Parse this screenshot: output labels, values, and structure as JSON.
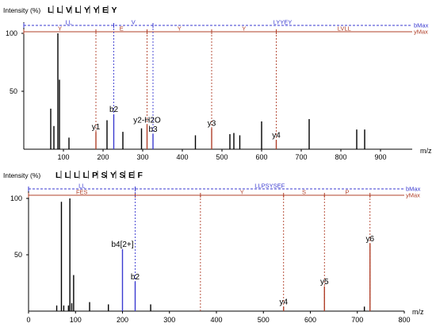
{
  "chart_data": [
    {
      "type": "bar",
      "ylabel": "Intensity (%)",
      "xlabel": "m/z",
      "sequence": [
        "L",
        "L",
        "V",
        "L",
        "Y",
        "Y",
        "E",
        "Y"
      ],
      "xlim": [
        0,
        980
      ],
      "ylim": [
        0,
        100
      ],
      "x_ticks": [
        "100",
        "200",
        "300",
        "400",
        "500",
        "600",
        "700",
        "800",
        "900"
      ],
      "y_ticks": [
        "50",
        "100"
      ],
      "b_series": {
        "name": "bMax",
        "segments": [
          {
            "from": 0,
            "to": 227,
            "label": "LL"
          },
          {
            "from": 227,
            "to": 326,
            "label": "V"
          },
          {
            "from": 326,
            "to": 980,
            "label": "LYYEY"
          }
        ]
      },
      "y_series": {
        "name": "yMax",
        "segments": [
          {
            "from": 0,
            "to": 182,
            "label": "Y"
          },
          {
            "from": 182,
            "to": 311,
            "label": "E"
          },
          {
            "from": 311,
            "to": 474,
            "label": "Y"
          },
          {
            "from": 474,
            "to": 637,
            "label": "Y"
          },
          {
            "from": 637,
            "to": 980,
            "label": "LVLL"
          }
        ]
      },
      "y_markers": [
        182,
        311,
        474,
        637
      ],
      "b_markers": [
        227,
        326
      ],
      "peaks": [
        {
          "x": 68,
          "y": 35
        },
        {
          "x": 76,
          "y": 20
        },
        {
          "x": 86,
          "y": 100
        },
        {
          "x": 90,
          "y": 60
        },
        {
          "x": 114,
          "y": 10
        },
        {
          "x": 182,
          "y": 15
        },
        {
          "x": 210,
          "y": 25
        },
        {
          "x": 227,
          "y": 30
        },
        {
          "x": 250,
          "y": 15
        },
        {
          "x": 297,
          "y": 18
        },
        {
          "x": 311,
          "y": 21
        },
        {
          "x": 326,
          "y": 13
        },
        {
          "x": 433,
          "y": 12
        },
        {
          "x": 474,
          "y": 18
        },
        {
          "x": 520,
          "y": 13
        },
        {
          "x": 530,
          "y": 14
        },
        {
          "x": 545,
          "y": 12
        },
        {
          "x": 600,
          "y": 24
        },
        {
          "x": 637,
          "y": 8
        },
        {
          "x": 720,
          "y": 26
        },
        {
          "x": 840,
          "y": 17
        },
        {
          "x": 860,
          "y": 17
        }
      ],
      "annotations": [
        {
          "x": 182,
          "y": 15,
          "text": "y1"
        },
        {
          "x": 227,
          "y": 30,
          "text": "b2"
        },
        {
          "x": 311,
          "y": 21,
          "text": "y2-H2O"
        },
        {
          "x": 326,
          "y": 13,
          "text": "b3"
        },
        {
          "x": 474,
          "y": 18,
          "text": "y3"
        },
        {
          "x": 637,
          "y": 8,
          "text": "y4"
        }
      ]
    },
    {
      "type": "bar",
      "ylabel": "Intensity (%)",
      "xlabel": "m/z",
      "sequence": [
        "L",
        "L",
        "L",
        "L",
        "P",
        "S",
        "Y",
        "S",
        "E",
        "F"
      ],
      "xlim": [
        0,
        800
      ],
      "ylim": [
        0,
        100
      ],
      "x_ticks": [
        "0",
        "100",
        "200",
        "300",
        "400",
        "500",
        "600",
        "700",
        "800"
      ],
      "y_ticks": [
        "50",
        "100"
      ],
      "b_series": {
        "name": "bMax",
        "segments": [
          {
            "from": 0,
            "to": 227,
            "label": "LL"
          },
          {
            "from": 227,
            "to": 800,
            "label": "LLPSYSEF"
          }
        ]
      },
      "y_series": {
        "name": "yMax",
        "segments": [
          {
            "from": 0,
            "to": 227,
            "label": "FES"
          },
          {
            "from": 227,
            "to": 366,
            "label": ""
          },
          {
            "from": 366,
            "to": 543,
            "label": "Y"
          },
          {
            "from": 543,
            "to": 630,
            "label": "S"
          },
          {
            "from": 630,
            "to": 727,
            "label": "P"
          },
          {
            "from": 727,
            "to": 800,
            "label": ""
          }
        ]
      },
      "y_markers": [
        366,
        543,
        630,
        727
      ],
      "b_markers": [
        227
      ],
      "peaks": [
        {
          "x": 60,
          "y": 5
        },
        {
          "x": 70,
          "y": 97
        },
        {
          "x": 75,
          "y": 5
        },
        {
          "x": 85,
          "y": 5
        },
        {
          "x": 88,
          "y": 100
        },
        {
          "x": 92,
          "y": 7
        },
        {
          "x": 96,
          "y": 32
        },
        {
          "x": 130,
          "y": 8
        },
        {
          "x": 170,
          "y": 6
        },
        {
          "x": 200,
          "y": 55
        },
        {
          "x": 227,
          "y": 26
        },
        {
          "x": 260,
          "y": 6
        },
        {
          "x": 543,
          "y": 4
        },
        {
          "x": 630,
          "y": 22
        },
        {
          "x": 715,
          "y": 4
        },
        {
          "x": 727,
          "y": 60
        }
      ],
      "annotations": [
        {
          "x": 200,
          "y": 55,
          "text": "b4[2+]"
        },
        {
          "x": 227,
          "y": 26,
          "text": "b2"
        },
        {
          "x": 543,
          "y": 4,
          "text": "y4"
        },
        {
          "x": 630,
          "y": 22,
          "text": "y5"
        },
        {
          "x": 727,
          "y": 60,
          "text": "y6"
        }
      ]
    }
  ]
}
